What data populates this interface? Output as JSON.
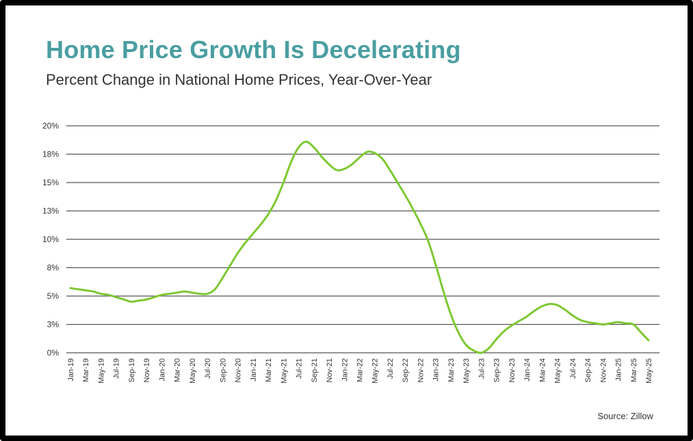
{
  "title": "Home Price Growth Is Decelerating",
  "subtitle": "Percent Change in National Home Prices, Year-Over-Year",
  "source": "Source: Zillow",
  "colors": {
    "title": "#4a9ea1",
    "line": "#7dc832",
    "grid": "#555555"
  },
  "chart_data": {
    "type": "line",
    "title": "Home Price Growth Is Decelerating",
    "subtitle": "Percent Change in National Home Prices, Year-Over-Year",
    "xlabel": "",
    "ylabel": "",
    "ylim": [
      0,
      20
    ],
    "grid": "horizontal",
    "y_ticks": [
      0,
      2.5,
      5,
      7.5,
      10,
      12.5,
      15,
      17.5,
      20
    ],
    "y_tick_labels": [
      "0%",
      "3%",
      "5%",
      "8%",
      "10%",
      "13%",
      "15%",
      "18%",
      "20%"
    ],
    "x_tick_labels": [
      "Jan-19",
      "Mar-19",
      "May-19",
      "Jul-19",
      "Sep-19",
      "Nov-19",
      "Jan-20",
      "Mar-20",
      "May-20",
      "Jul-20",
      "Sep-20",
      "Nov-20",
      "Jan-21",
      "Mar-21",
      "May-21",
      "Jul-21",
      "Sep-21",
      "Nov-21",
      "Jan-22",
      "Mar-22",
      "May-22",
      "Jul-22",
      "Sep-22",
      "Nov-22",
      "Jan-23",
      "Mar-23",
      "May-23",
      "Jul-23",
      "Sep-23",
      "Nov-23",
      "Jan-24",
      "Mar-24",
      "May-24",
      "Jul-24",
      "Sep-24",
      "Nov-24",
      "Jan-25",
      "Mar-25",
      "May-25"
    ],
    "x": [
      "Jan-19",
      "Feb-19",
      "Mar-19",
      "Apr-19",
      "May-19",
      "Jun-19",
      "Jul-19",
      "Aug-19",
      "Sep-19",
      "Oct-19",
      "Nov-19",
      "Dec-19",
      "Jan-20",
      "Feb-20",
      "Mar-20",
      "Apr-20",
      "May-20",
      "Jun-20",
      "Jul-20",
      "Aug-20",
      "Sep-20",
      "Oct-20",
      "Nov-20",
      "Dec-20",
      "Jan-21",
      "Feb-21",
      "Mar-21",
      "Apr-21",
      "May-21",
      "Jun-21",
      "Jul-21",
      "Aug-21",
      "Sep-21",
      "Oct-21",
      "Nov-21",
      "Dec-21",
      "Jan-22",
      "Feb-22",
      "Mar-22",
      "Apr-22",
      "May-22",
      "Jun-22",
      "Jul-22",
      "Aug-22",
      "Sep-22",
      "Oct-22",
      "Nov-22",
      "Dec-22",
      "Jan-23",
      "Feb-23",
      "Mar-23",
      "Apr-23",
      "May-23",
      "Jun-23",
      "Jul-23",
      "Aug-23",
      "Sep-23",
      "Oct-23",
      "Nov-23",
      "Dec-23",
      "Jan-24",
      "Feb-24",
      "Mar-24",
      "Apr-24",
      "May-24",
      "Jun-24",
      "Jul-24",
      "Aug-24",
      "Sep-24",
      "Oct-24",
      "Nov-24",
      "Dec-24",
      "Jan-25",
      "Feb-25",
      "Mar-25",
      "Apr-25",
      "May-25"
    ],
    "series": [
      {
        "values": [
          5.7,
          5.6,
          5.5,
          5.4,
          5.2,
          5.1,
          4.9,
          4.7,
          4.5,
          4.6,
          4.7,
          4.9,
          5.1,
          5.2,
          5.3,
          5.4,
          5.3,
          5.2,
          5.2,
          5.6,
          6.6,
          7.7,
          8.8,
          9.7,
          10.5,
          11.3,
          12.2,
          13.4,
          15.0,
          16.8,
          18.1,
          18.6,
          18.1,
          17.3,
          16.6,
          16.1,
          16.2,
          16.6,
          17.2,
          17.7,
          17.6,
          17.1,
          16.1,
          15.0,
          13.9,
          12.7,
          11.4,
          9.9,
          7.8,
          5.5,
          3.4,
          1.8,
          0.7,
          0.2,
          0.0,
          0.4,
          1.2,
          1.9,
          2.4,
          2.8,
          3.2,
          3.7,
          4.1,
          4.3,
          4.2,
          3.8,
          3.3,
          2.9,
          2.7,
          2.6,
          2.5,
          2.6,
          2.7,
          2.6,
          2.5,
          1.8,
          1.1
        ]
      }
    ]
  }
}
